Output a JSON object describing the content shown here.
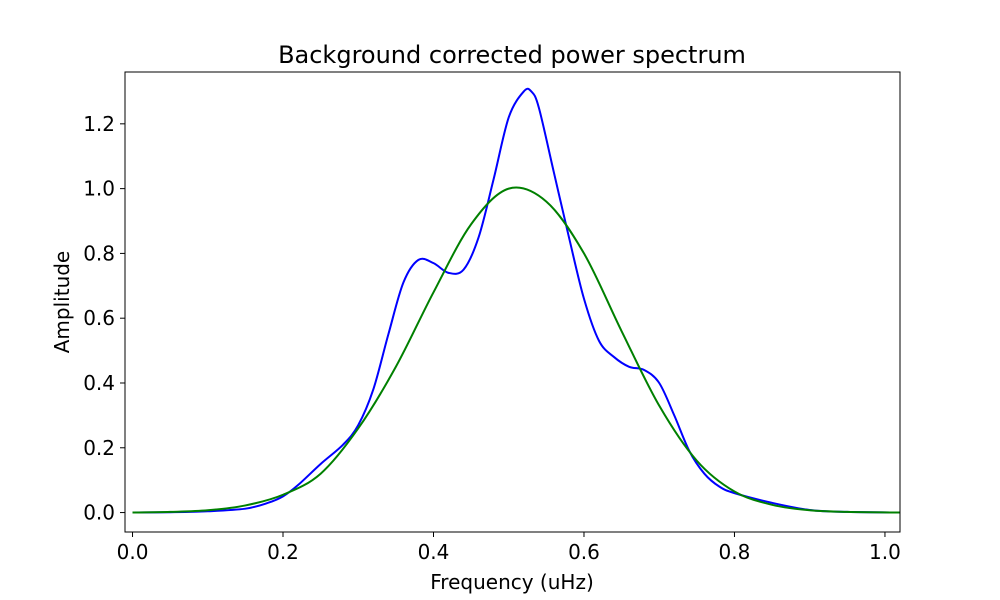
{
  "chart_data": {
    "type": "line",
    "title": "Background corrected power spectrum",
    "xlabel": "Frequency (uHz)",
    "ylabel": "Amplitude",
    "xlim": [
      -0.01,
      1.02
    ],
    "ylim": [
      -0.06,
      1.36
    ],
    "xticks": [
      "0.0",
      "0.2",
      "0.4",
      "0.6",
      "0.8",
      "1.0"
    ],
    "yticks": [
      "0.0",
      "0.2",
      "0.4",
      "0.6",
      "0.8",
      "1.0",
      "1.2"
    ],
    "grid": false,
    "legend": "none",
    "series": [
      {
        "color": "#0000ff",
        "x": [
          0.0,
          0.05,
          0.1,
          0.15,
          0.18,
          0.2,
          0.22,
          0.25,
          0.28,
          0.3,
          0.32,
          0.34,
          0.36,
          0.38,
          0.4,
          0.42,
          0.44,
          0.46,
          0.48,
          0.5,
          0.52,
          0.53,
          0.54,
          0.56,
          0.58,
          0.6,
          0.62,
          0.64,
          0.66,
          0.68,
          0.7,
          0.72,
          0.74,
          0.76,
          0.78,
          0.8,
          0.85,
          0.9,
          0.95,
          1.02
        ],
        "y": [
          0.0,
          0.001,
          0.004,
          0.012,
          0.03,
          0.05,
          0.085,
          0.15,
          0.21,
          0.27,
          0.38,
          0.55,
          0.71,
          0.78,
          0.77,
          0.74,
          0.75,
          0.85,
          1.03,
          1.22,
          1.3,
          1.3,
          1.25,
          1.05,
          0.85,
          0.66,
          0.53,
          0.48,
          0.45,
          0.44,
          0.4,
          0.3,
          0.19,
          0.12,
          0.08,
          0.06,
          0.03,
          0.008,
          0.002,
          0.0
        ]
      },
      {
        "color": "#008000",
        "x": [
          0.0,
          0.05,
          0.1,
          0.15,
          0.2,
          0.25,
          0.3,
          0.35,
          0.4,
          0.45,
          0.5,
          0.55,
          0.6,
          0.65,
          0.7,
          0.75,
          0.8,
          0.85,
          0.9,
          0.95,
          1.02
        ],
        "y": [
          0.0,
          0.002,
          0.007,
          0.022,
          0.055,
          0.12,
          0.26,
          0.45,
          0.68,
          0.89,
          1.0,
          0.96,
          0.8,
          0.56,
          0.33,
          0.16,
          0.065,
          0.024,
          0.007,
          0.002,
          0.0
        ]
      }
    ]
  }
}
